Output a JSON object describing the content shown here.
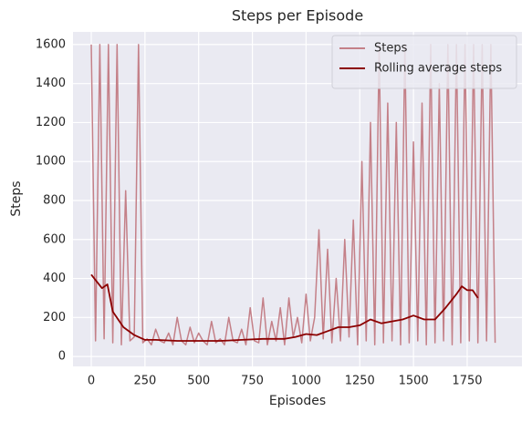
{
  "chart_data": {
    "type": "line",
    "title": "Steps per Episode",
    "xlabel": "Episodes",
    "ylabel": "Steps",
    "xlim": [
      -85,
      2005
    ],
    "ylim": [
      -51,
      1665
    ],
    "xticks": [
      0,
      250,
      500,
      750,
      1000,
      1250,
      1500,
      1750
    ],
    "yticks": [
      0,
      200,
      400,
      600,
      800,
      1000,
      1200,
      1400,
      1600
    ],
    "grid": true,
    "legend": "upper right",
    "series": [
      {
        "name": "Steps",
        "color": "#c48088",
        "x": [
          0,
          20,
          40,
          60,
          80,
          100,
          120,
          140,
          160,
          180,
          200,
          220,
          240,
          260,
          280,
          300,
          320,
          340,
          360,
          380,
          400,
          420,
          440,
          460,
          480,
          500,
          520,
          540,
          560,
          580,
          600,
          620,
          640,
          660,
          680,
          700,
          720,
          740,
          760,
          780,
          800,
          820,
          840,
          860,
          880,
          900,
          920,
          940,
          960,
          980,
          1000,
          1020,
          1040,
          1060,
          1080,
          1100,
          1120,
          1140,
          1160,
          1180,
          1200,
          1220,
          1240,
          1260,
          1280,
          1300,
          1320,
          1340,
          1360,
          1380,
          1400,
          1420,
          1440,
          1460,
          1480,
          1500,
          1520,
          1540,
          1560,
          1580,
          1600,
          1620,
          1640,
          1660,
          1680,
          1700,
          1720,
          1740,
          1760,
          1780,
          1800,
          1820,
          1840,
          1860,
          1880
        ],
        "values": [
          1600,
          80,
          1600,
          90,
          1600,
          70,
          1600,
          60,
          850,
          80,
          100,
          1600,
          70,
          90,
          60,
          140,
          80,
          70,
          120,
          60,
          200,
          80,
          60,
          150,
          70,
          120,
          80,
          60,
          180,
          70,
          90,
          60,
          200,
          80,
          70,
          140,
          60,
          250,
          80,
          70,
          300,
          60,
          180,
          80,
          250,
          60,
          300,
          100,
          200,
          70,
          320,
          80,
          200,
          650,
          90,
          550,
          70,
          400,
          80,
          600,
          100,
          700,
          60,
          1000,
          80,
          1200,
          60,
          1600,
          70,
          1300,
          80,
          1200,
          60,
          1600,
          70,
          1100,
          80,
          1300,
          60,
          1600,
          70,
          1400,
          80,
          1600,
          60,
          1600,
          70,
          1600,
          80,
          1600,
          70,
          1600,
          80,
          1600,
          70
        ]
      },
      {
        "name": "Rolling average steps",
        "color": "#8b0000",
        "x": [
          0,
          50,
          75,
          100,
          150,
          200,
          250,
          300,
          400,
          500,
          600,
          700,
          800,
          900,
          950,
          1000,
          1050,
          1100,
          1150,
          1200,
          1250,
          1300,
          1350,
          1400,
          1450,
          1500,
          1550,
          1600,
          1650,
          1700,
          1725,
          1750,
          1775,
          1800
        ],
        "values": [
          420,
          350,
          370,
          230,
          150,
          110,
          85,
          85,
          80,
          80,
          80,
          85,
          90,
          90,
          100,
          115,
          110,
          130,
          150,
          150,
          160,
          190,
          170,
          180,
          190,
          210,
          190,
          190,
          250,
          320,
          360,
          340,
          340,
          300
        ]
      }
    ]
  }
}
